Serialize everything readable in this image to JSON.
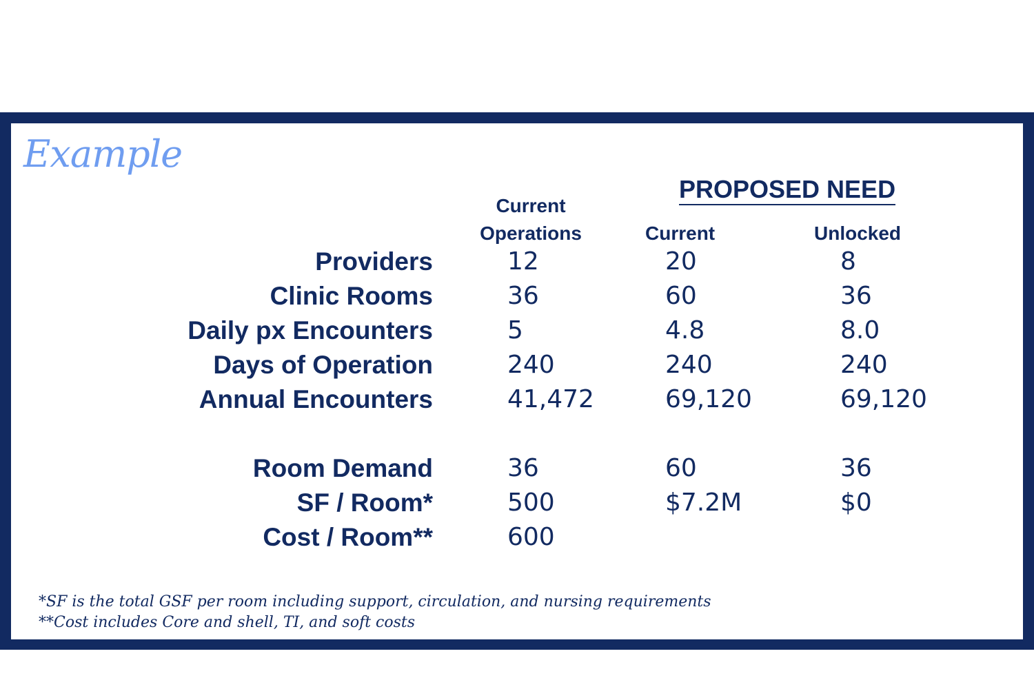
{
  "title": "Example",
  "headers": {
    "current_operations_line1": "Current",
    "current_operations_line2": "Operations",
    "proposed_need": "PROPOSED NEED",
    "proposed_current": "Current",
    "proposed_unlocked": "Unlocked"
  },
  "rows": [
    {
      "label": "Providers",
      "current_operations": "12",
      "current": "20",
      "unlocked": "8"
    },
    {
      "label": "Clinic Rooms",
      "current_operations": "36",
      "current": "60",
      "unlocked": "36"
    },
    {
      "label": "Daily px Encounters",
      "current_operations": "5",
      "current": "4.8",
      "unlocked": "8.0"
    },
    {
      "label": "Days of Operation",
      "current_operations": "240",
      "current": "240",
      "unlocked": "240"
    },
    {
      "label": "Annual Encounters",
      "current_operations": "41,472",
      "current": "69,120",
      "unlocked": "69,120"
    },
    {
      "label": "Room Demand",
      "current_operations": "36",
      "current": "60",
      "unlocked": "36"
    },
    {
      "label": "SF / Room*",
      "current_operations": "500",
      "current": "$7.2M",
      "unlocked": "$0"
    },
    {
      "label": "Cost / Room**",
      "current_operations": "600",
      "current": "",
      "unlocked": ""
    }
  ],
  "footnotes": [
    "*SF is the total GSF per room including support, circulation, and nursing requirements",
    "**Cost includes Core and shell, TI, and soft costs"
  ],
  "colors": {
    "navy": "#122a61",
    "example_blue": "#6f9df0"
  }
}
